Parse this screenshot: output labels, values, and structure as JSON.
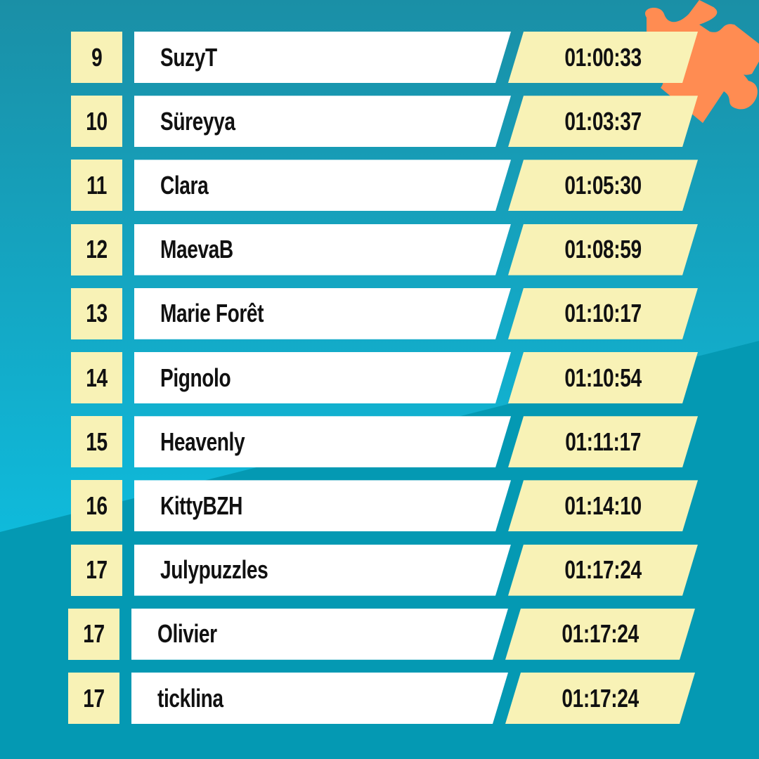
{
  "colors": {
    "background": "#0499b3",
    "band": "#14b3d2",
    "cell_yellow": "#f8f2b6",
    "cell_white": "#ffffff",
    "puzzle": "#ff8c52"
  },
  "rows": [
    {
      "rank": "9",
      "name": "SuzyT",
      "time": "01:00:33"
    },
    {
      "rank": "10",
      "name": "Süreyya",
      "time": "01:03:37"
    },
    {
      "rank": "11",
      "name": "Clara",
      "time": "01:05:30"
    },
    {
      "rank": "12",
      "name": "MaevaB",
      "time": "01:08:59"
    },
    {
      "rank": "13",
      "name": "Marie Forêt",
      "time": "01:10:17"
    },
    {
      "rank": "14",
      "name": "Pignolo",
      "time": "01:10:54"
    },
    {
      "rank": "15",
      "name": "Heavenly",
      "time": "01:11:17"
    },
    {
      "rank": "16",
      "name": "KittyBZH",
      "time": "01:14:10"
    },
    {
      "rank": "17",
      "name": "Julypuzzles",
      "time": "01:17:24"
    },
    {
      "rank": "17",
      "name": "Olivier",
      "time": "01:17:24"
    },
    {
      "rank": "17",
      "name": "ticklina",
      "time": "01:17:24"
    }
  ]
}
